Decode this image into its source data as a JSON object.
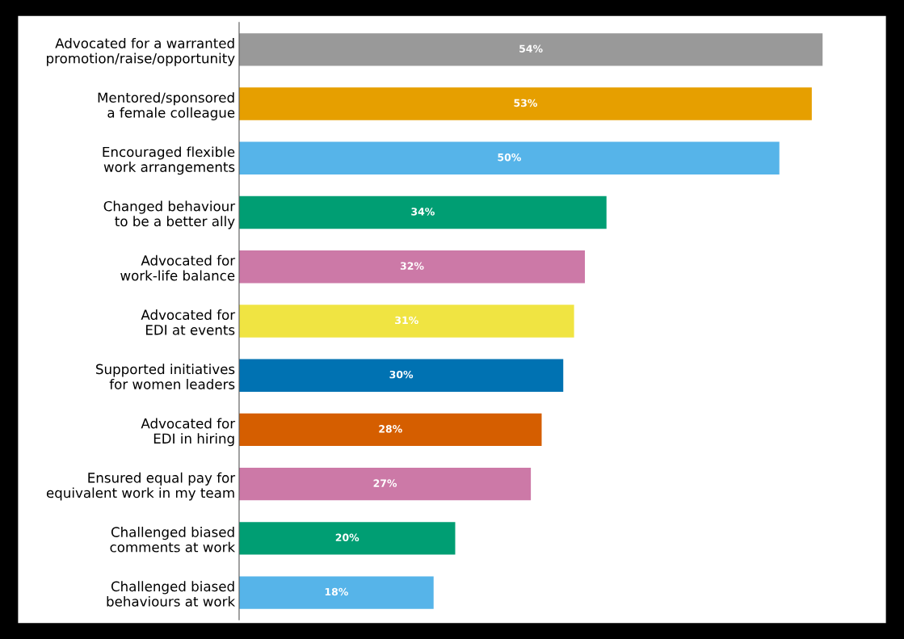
{
  "chart_data": {
    "type": "bar",
    "orientation": "horizontal",
    "categories": [
      "Advocated for a warranted\npromotion/raise/opportunity",
      "Mentored/sponsored\na female colleague",
      "Encouraged flexible\nwork arrangements",
      "Changed behaviour\nto be a better ally",
      "Advocated for\nwork-life balance",
      "Advocated for\nEDI at events",
      "Supported initiatives\nfor women leaders",
      "Advocated for\nEDI in hiring",
      "Ensured equal pay for\nequivalent work in my team",
      "Challenged biased\ncomments at work",
      "Challenged biased\nbehaviours at work"
    ],
    "values": [
      54,
      53,
      50,
      34,
      32,
      31,
      30,
      28,
      27,
      20,
      18
    ],
    "value_labels": [
      "54%",
      "53%",
      "50%",
      "34%",
      "32%",
      "31%",
      "30%",
      "28%",
      "27%",
      "20%",
      "18%"
    ],
    "colors": [
      "#999999",
      "#e69f00",
      "#56b4e9",
      "#009e73",
      "#cc79a7",
      "#f0e442",
      "#0072b2",
      "#d55e00",
      "#cc79a7",
      "#009e73",
      "#56b4e9"
    ],
    "grid": false,
    "legend": false
  }
}
